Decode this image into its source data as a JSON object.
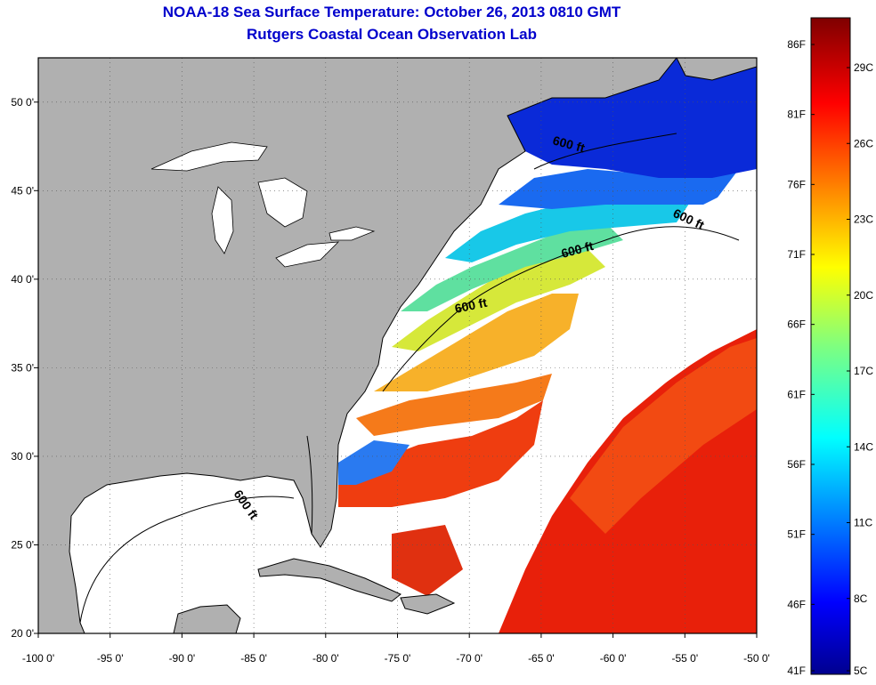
{
  "title": {
    "line1": "NOAA-18 Sea Surface Temperature:  October 26, 2013 0810 GMT",
    "line2": "Rutgers Coastal Ocean Observation Lab"
  },
  "map": {
    "lon_range": [
      -100,
      -50
    ],
    "lat_range": [
      20,
      52.5
    ],
    "x_ticks": [
      "-100 0'",
      "-95 0'",
      "-90 0'",
      "-85 0'",
      "-80 0'",
      "-75 0'",
      "-70 0'",
      "-65 0'",
      "-60 0'",
      "-55 0'",
      "-50 0'"
    ],
    "y_ticks": [
      "50 0'",
      "45 0'",
      "40 0'",
      "35 0'",
      "30 0'",
      "25 0'",
      "20 0'"
    ],
    "contour_labels": [
      "600 ft",
      "600 ft",
      "600 ft",
      "600 ft",
      "600 ft"
    ],
    "land_color": "#b0b0b0",
    "nodata_color": "#ffffff",
    "grid": true
  },
  "colorbar": {
    "f_labels": [
      "86F",
      "81F",
      "76F",
      "71F",
      "66F",
      "61F",
      "56F",
      "51F",
      "46F",
      "41F"
    ],
    "c_labels": [
      "29C",
      "26C",
      "23C",
      "20C",
      "17C",
      "14C",
      "11C",
      "8C",
      "5C"
    ],
    "colormap": "jet"
  }
}
